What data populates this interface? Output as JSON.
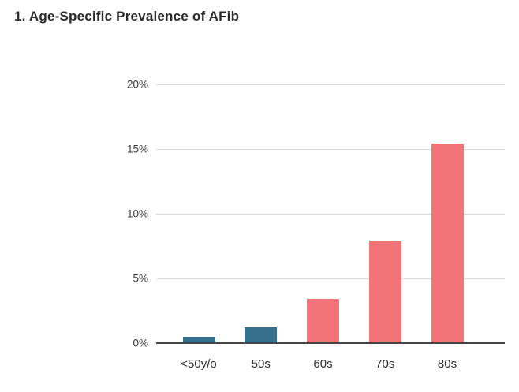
{
  "page": {
    "background": "#ffffff"
  },
  "chart_data": {
    "type": "bar",
    "title": "1. Age-Specific Prevalence of AFib",
    "categories": [
      "<50y/o",
      "50s",
      "60s",
      "70s",
      "80s"
    ],
    "values": [
      0.5,
      1.2,
      3.4,
      7.9,
      15.4
    ],
    "bar_colors": [
      "#35708E",
      "#35708E",
      "#F37478",
      "#F37478",
      "#F37478"
    ],
    "y_ticks": [
      {
        "label": "20%",
        "value": 20
      },
      {
        "label": "15%",
        "value": 15
      },
      {
        "label": "10%",
        "value": 10
      },
      {
        "label": "5%",
        "value": 5
      },
      {
        "label": "0%",
        "value": 0
      }
    ],
    "ylim": [
      0,
      20
    ],
    "xlabel": "",
    "ylabel": "",
    "grid": "horizontal",
    "legend": "none",
    "colors": {
      "grid": "#d9d9d9",
      "axis": "#464646",
      "title_text": "#2b2b2b",
      "tick_text": "#3a3a3a",
      "series_blue": "#35708E",
      "series_red": "#F37478"
    }
  }
}
